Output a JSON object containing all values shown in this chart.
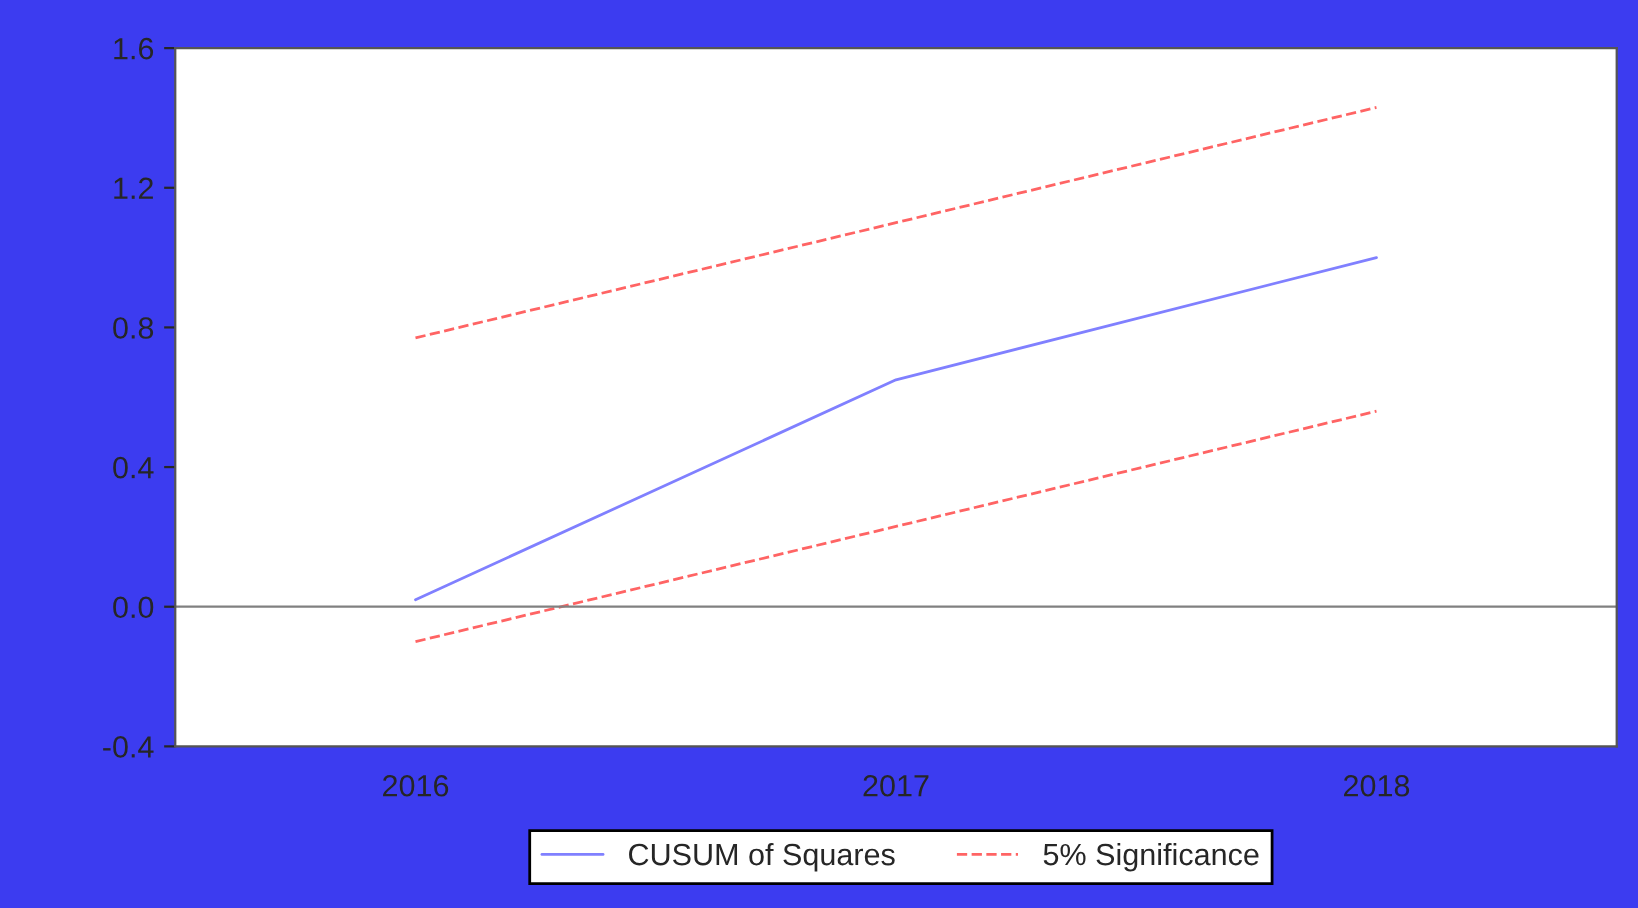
{
  "chart_data": {
    "type": "line",
    "categories": [
      "2016",
      "2017",
      "2018"
    ],
    "series": [
      {
        "name": "CUSUM of Squares",
        "color": "#8080ff",
        "line_style": "solid",
        "values": [
          0.02,
          0.65,
          1.0
        ]
      },
      {
        "name": "5% Significance",
        "color": "#ff6464",
        "line_style": "dashed",
        "values": [
          0.77,
          1.1,
          1.43
        ]
      },
      {
        "color": "#ff6464",
        "line_style": "dashed",
        "values": [
          -0.1,
          0.23,
          0.56
        ]
      }
    ],
    "ylim": [
      -0.4,
      1.6
    ],
    "yticks": [
      {
        "value": -0.4,
        "label": "-0.4"
      },
      {
        "value": 0.0,
        "label": "0.0"
      },
      {
        "value": 0.4,
        "label": "0.4"
      },
      {
        "value": 0.8,
        "label": "0.8"
      },
      {
        "value": 1.2,
        "label": "1.2"
      },
      {
        "value": 1.6,
        "label": "1.6"
      }
    ],
    "ref_lines": [
      {
        "axis": "y",
        "value": 0.0,
        "color": "#808080",
        "line_style": "solid"
      }
    ],
    "legend": "bottom",
    "grid": false
  }
}
